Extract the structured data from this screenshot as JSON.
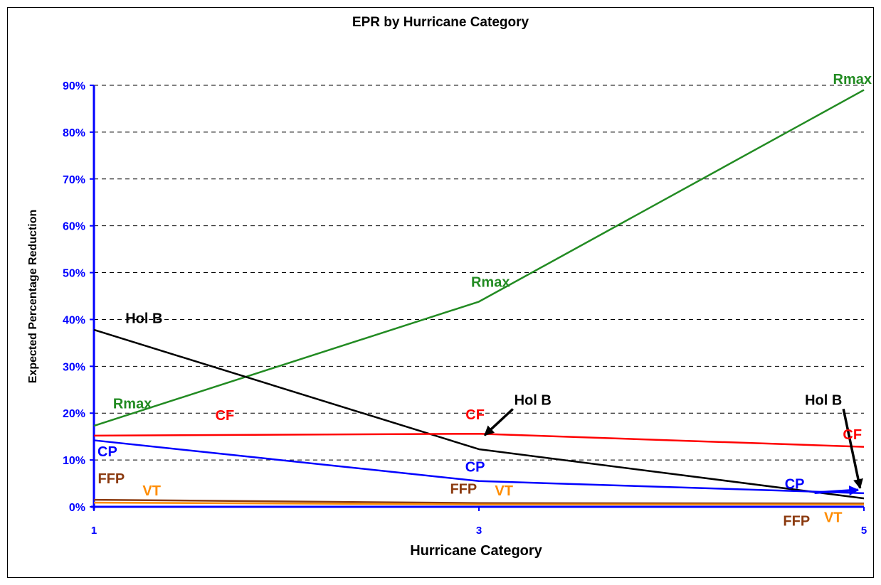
{
  "chart_data": {
    "type": "line",
    "title": "EPR by Hurricane Category",
    "xlabel": "Hurricane Category",
    "ylabel": "Expected Percentage Reduction",
    "x": [
      1,
      3,
      5
    ],
    "x_tick_labels": [
      "1",
      "3",
      "5"
    ],
    "ylim": [
      0,
      90
    ],
    "y_ticks": [
      0,
      10,
      20,
      30,
      40,
      50,
      60,
      70,
      80,
      90
    ],
    "y_tick_labels": [
      "0%",
      "10%",
      "20%",
      "30%",
      "40%",
      "50%",
      "60%",
      "70%",
      "80%",
      "90%"
    ],
    "grid": "horizontal dashed",
    "colors": {
      "axis": "#0000ff",
      "grid": "#000000"
    },
    "series": [
      {
        "name": "Rmax",
        "color": "#228b22",
        "values": [
          17.3,
          43.8,
          89.0
        ]
      },
      {
        "name": "Hol B",
        "color": "#000000",
        "values": [
          37.8,
          12.3,
          1.8
        ]
      },
      {
        "name": "CF",
        "color": "#ff0000",
        "values": [
          15.2,
          15.6,
          12.8
        ]
      },
      {
        "name": "CP",
        "color": "#0000ff",
        "values": [
          14.2,
          5.5,
          2.9
        ]
      },
      {
        "name": "FFP",
        "color": "#8b3a0f",
        "values": [
          1.5,
          0.8,
          0.7
        ]
      },
      {
        "name": "VT",
        "color": "#ff8c00",
        "values": [
          0.9,
          0.5,
          0.5
        ]
      }
    ],
    "annotations": [
      {
        "text": "Rmax",
        "color": "#228b22",
        "x": 1.2,
        "y": 21.0
      },
      {
        "text": "Rmax",
        "color": "#228b22",
        "x": 3.06,
        "y": 47.0
      },
      {
        "text": "Rmax",
        "color": "#228b22",
        "x": 4.94,
        "y": 90.3
      },
      {
        "text": "Hol B",
        "color": "#000000",
        "x": 1.26,
        "y": 39.2
      },
      {
        "text": "Hol B",
        "color": "#000000",
        "x": 3.28,
        "y": 21.8,
        "arrow_to": [
          3.03,
          15.3
        ]
      },
      {
        "text": "Hol B",
        "color": "#000000",
        "x": 4.79,
        "y": 21.8,
        "arrow_to": [
          4.98,
          4.0
        ]
      },
      {
        "text": "CF",
        "color": "#ff0000",
        "x": 1.68,
        "y": 18.5
      },
      {
        "text": "CF",
        "color": "#ff0000",
        "x": 2.98,
        "y": 18.7
      },
      {
        "text": "CF",
        "color": "#ff0000",
        "x": 4.94,
        "y": 14.4
      },
      {
        "text": "CP",
        "color": "#0000ff",
        "x": 1.07,
        "y": 10.8
      },
      {
        "text": "CP",
        "color": "#0000ff",
        "x": 2.98,
        "y": 7.5
      },
      {
        "text": "CP",
        "color": "#0000ff",
        "x": 4.64,
        "y": 3.9,
        "arrow_to": [
          4.97,
          3.6
        ]
      },
      {
        "text": "FFP",
        "color": "#8b3a0f",
        "x": 1.09,
        "y": 5.0
      },
      {
        "text": "FFP",
        "color": "#8b3a0f",
        "x": 2.92,
        "y": 2.8
      },
      {
        "text": "FFP",
        "color": "#8b3a0f",
        "x": 4.65,
        "y": -4.0
      },
      {
        "text": "VT",
        "color": "#ff8c00",
        "x": 1.3,
        "y": 2.4
      },
      {
        "text": "VT",
        "color": "#ff8c00",
        "x": 3.13,
        "y": 2.4
      },
      {
        "text": "VT",
        "color": "#ff8c00",
        "x": 4.84,
        "y": -3.3
      }
    ]
  }
}
